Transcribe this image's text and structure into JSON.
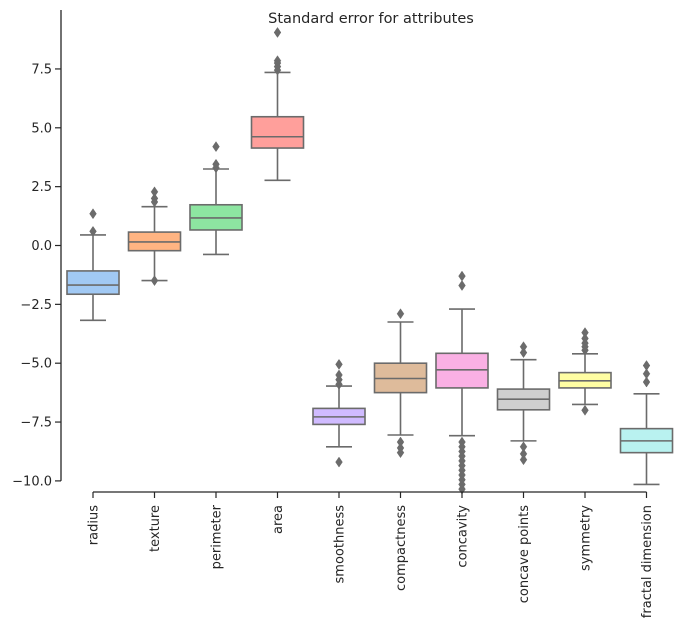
{
  "chart_data": {
    "type": "box",
    "title": "Standard error for attributes",
    "xlabel": "",
    "ylabel": "",
    "ylim": [
      -10.0,
      9.4
    ],
    "yticks": [
      "7.5",
      "5.0",
      "2.5",
      "0.0",
      "−2.5",
      "−5.0",
      "−7.5",
      "−10.0"
    ],
    "ytick_values": [
      7.5,
      5.0,
      2.5,
      0.0,
      -2.5,
      -5.0,
      -7.5,
      -10.0
    ],
    "categories": [
      "radius",
      "texture",
      "perimeter",
      "area",
      "smoothness",
      "compactness",
      "concavity",
      "concave points",
      "symmetry",
      "fractal dimension"
    ],
    "boxes": [
      {
        "name": "radius",
        "color": "#a1c9f4",
        "q1": -2.07,
        "median": -1.68,
        "q3": -1.08,
        "whisker_low": -3.18,
        "whisker_high": 0.45,
        "outliers": [
          0.6,
          1.35
        ]
      },
      {
        "name": "texture",
        "color": "#ffb482",
        "q1": -0.22,
        "median": 0.15,
        "q3": 0.57,
        "whisker_low": -1.49,
        "whisker_high": 1.65,
        "outliers": [
          -1.49,
          1.85,
          2.0,
          2.28
        ]
      },
      {
        "name": "perimeter",
        "color": "#8de5a1",
        "q1": 0.66,
        "median": 1.17,
        "q3": 1.73,
        "whisker_low": -0.38,
        "whisker_high": 3.25,
        "outliers": [
          3.3,
          3.45,
          4.2
        ]
      },
      {
        "name": "area",
        "color": "#ff9f9b",
        "q1": 4.14,
        "median": 4.62,
        "q3": 5.47,
        "whisker_low": 2.77,
        "whisker_high": 7.35,
        "outliers": [
          7.45,
          7.6,
          7.75,
          7.85,
          9.05
        ]
      },
      {
        "name": "smoothness",
        "color": "#d0bbff",
        "q1": -7.6,
        "median": -7.28,
        "q3": -6.92,
        "whisker_low": -8.55,
        "whisker_high": -5.97,
        "outliers": [
          -9.2,
          -5.9,
          -5.7,
          -5.5,
          -5.05
        ]
      },
      {
        "name": "compactness",
        "color": "#debb9b",
        "q1": -6.25,
        "median": -5.65,
        "q3": -5.0,
        "whisker_low": -8.05,
        "whisker_high": -3.25,
        "outliers": [
          -8.8,
          -8.6,
          -8.35,
          -2.9
        ]
      },
      {
        "name": "concavity",
        "color": "#fab0e4",
        "q1": -6.05,
        "median": -5.28,
        "q3": -4.58,
        "whisker_low": -8.08,
        "whisker_high": -2.7,
        "outliers": [
          -10.35,
          -10.15,
          -9.95,
          -9.75,
          -9.55,
          -9.35,
          -9.15,
          -8.95,
          -8.75,
          -8.55,
          -8.35,
          -1.7,
          -1.3
        ]
      },
      {
        "name": "concave points",
        "color": "#cfcfcf",
        "q1": -6.98,
        "median": -6.53,
        "q3": -6.1,
        "whisker_low": -8.3,
        "whisker_high": -4.85,
        "outliers": [
          -9.1,
          -8.85,
          -8.55,
          -4.55,
          -4.3
        ]
      },
      {
        "name": "symmetry",
        "color": "#fffea3",
        "q1": -6.05,
        "median": -5.75,
        "q3": -5.4,
        "whisker_low": -6.75,
        "whisker_high": -4.6,
        "outliers": [
          -7.0,
          -4.45,
          -4.3,
          -4.15,
          -3.95,
          -3.7
        ]
      },
      {
        "name": "fractal dimension",
        "color": "#b9f2f0",
        "q1": -8.8,
        "median": -8.3,
        "q3": -7.78,
        "whisker_low": -10.15,
        "whisker_high": -6.3,
        "outliers": [
          -5.8,
          -5.45,
          -5.1
        ]
      }
    ],
    "line_color": "#6b6b6b",
    "grid": false,
    "legend": "none"
  }
}
